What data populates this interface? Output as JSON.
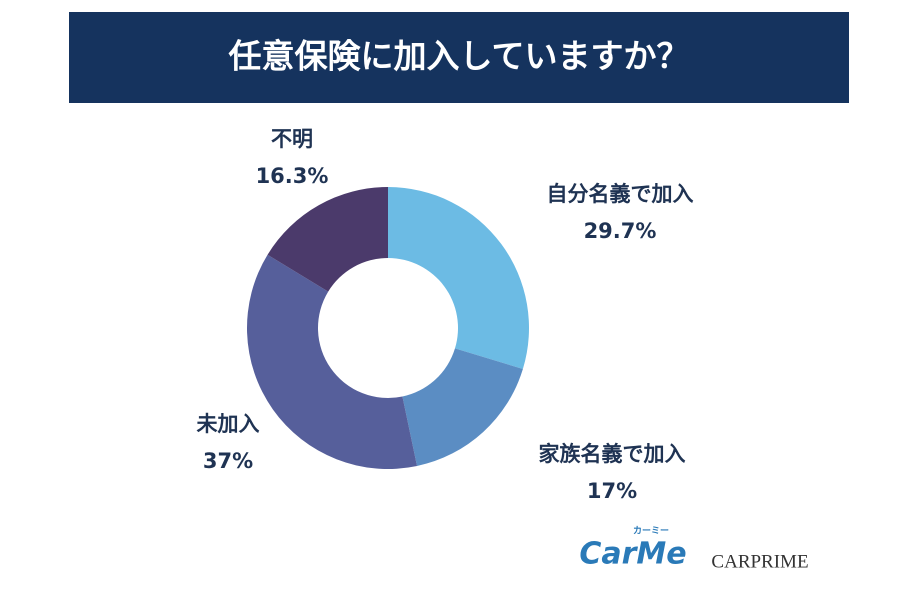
{
  "chart_data": {
    "type": "donut",
    "title": "任意保険に加入していますか？",
    "categories": [
      "自分名義で加入",
      "家族名義で加入",
      "未加入",
      "不明"
    ],
    "values": [
      29.7,
      17,
      37,
      16.3
    ],
    "value_labels": [
      "29.7%",
      "17%",
      "37%",
      "16.3%"
    ],
    "colors": [
      "#6cbbe4",
      "#5b8dc3",
      "#565f9b",
      "#4b3a6b"
    ]
  },
  "footer": {
    "logo_main": "CarMe",
    "logo_kana": "カーミー",
    "logo_second": "CARPRIME"
  }
}
